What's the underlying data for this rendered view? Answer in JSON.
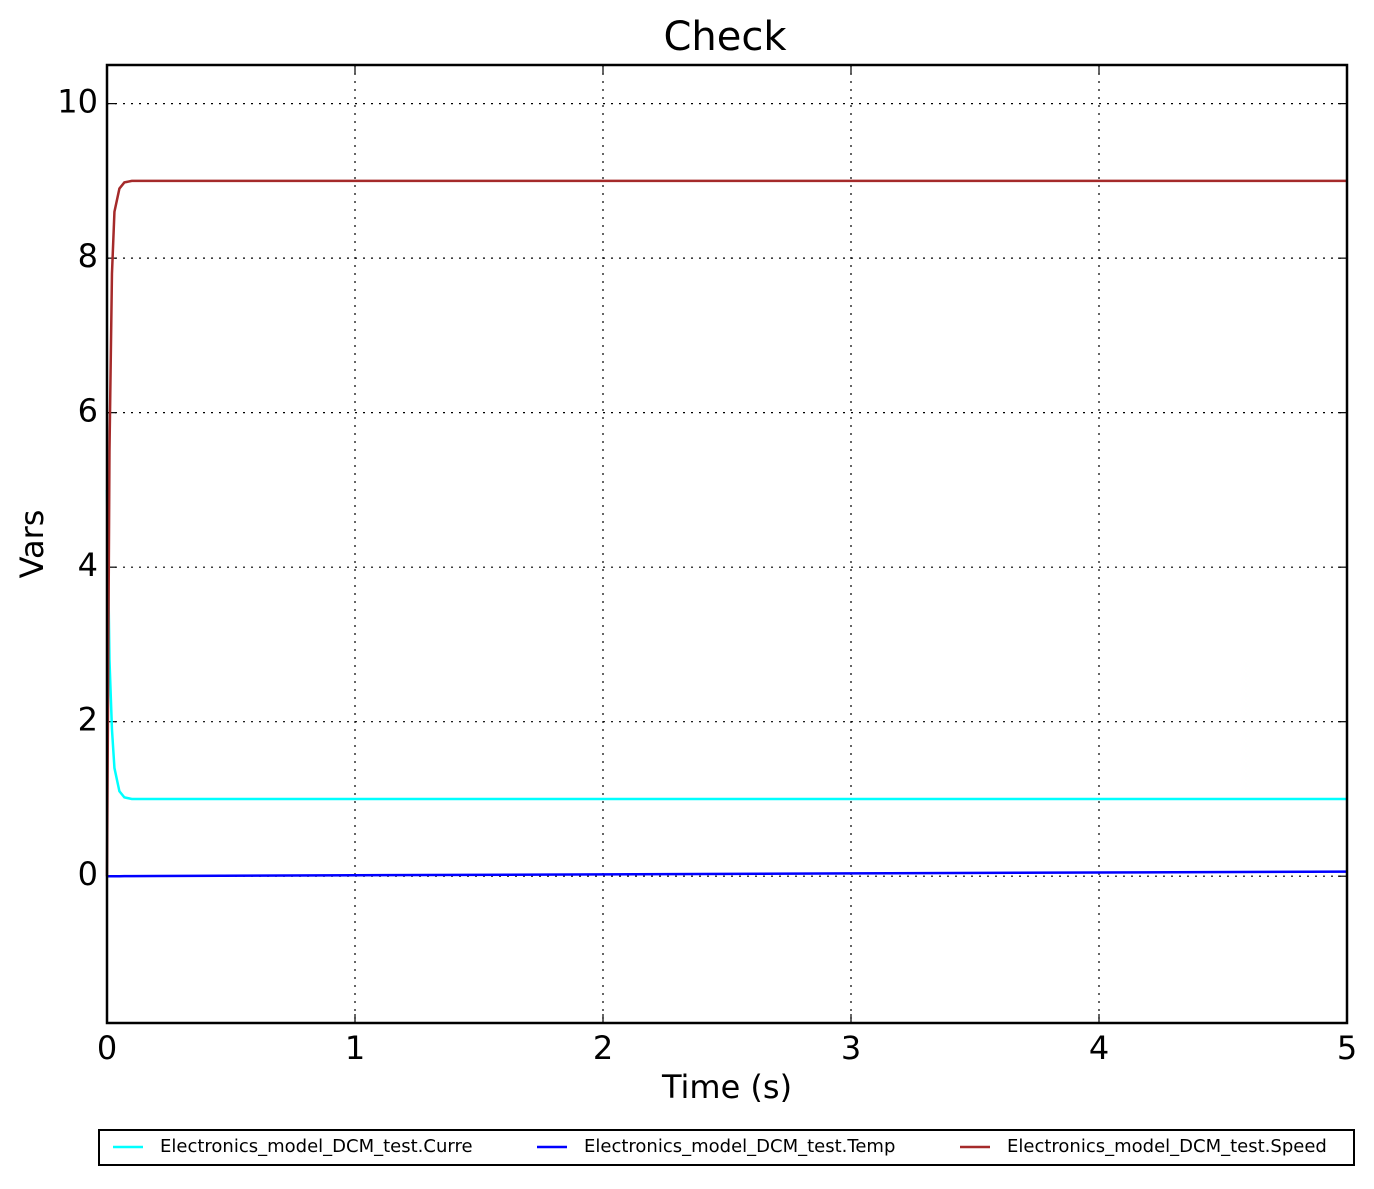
{
  "chart_data": {
    "type": "line",
    "title": "Check",
    "x_label": "Time (s)",
    "y_label": "Vars",
    "x": [
      0,
      0.01,
      0.02,
      0.03,
      0.05,
      0.07,
      0.1,
      0.2,
      1,
      2,
      3,
      4,
      5
    ],
    "series": [
      {
        "name": "Electronics_model_DCM_test.Curre",
        "color": "#00ffff",
        "values": [
          5,
          2.8,
          1.9,
          1.4,
          1.1,
          1.02,
          1.0,
          1.0,
          1.0,
          1.0,
          1.0,
          1.0,
          1.0
        ]
      },
      {
        "name": "Electronics_model_DCM_test.Temp",
        "color": "#0000ff",
        "values": [
          0,
          0,
          0,
          0,
          0,
          0.001,
          0.001,
          0.002,
          0.012,
          0.024,
          0.036,
          0.048,
          0.06
        ]
      },
      {
        "name": "Electronics_model_DCM_test.Speed",
        "color": "#a52a2a",
        "values": [
          0,
          5.5,
          7.8,
          8.6,
          8.9,
          8.98,
          9.0,
          9.0,
          9.0,
          9.0,
          9.0,
          9.0,
          9.0
        ]
      }
    ],
    "xlim": [
      0,
      5
    ],
    "xticks": [
      0,
      1,
      2,
      3,
      4,
      5
    ],
    "ylim": [
      -1.9,
      10.5
    ],
    "yticks": [
      0,
      2,
      4,
      6,
      8,
      10
    ],
    "grid": true,
    "legend": "bottom"
  }
}
